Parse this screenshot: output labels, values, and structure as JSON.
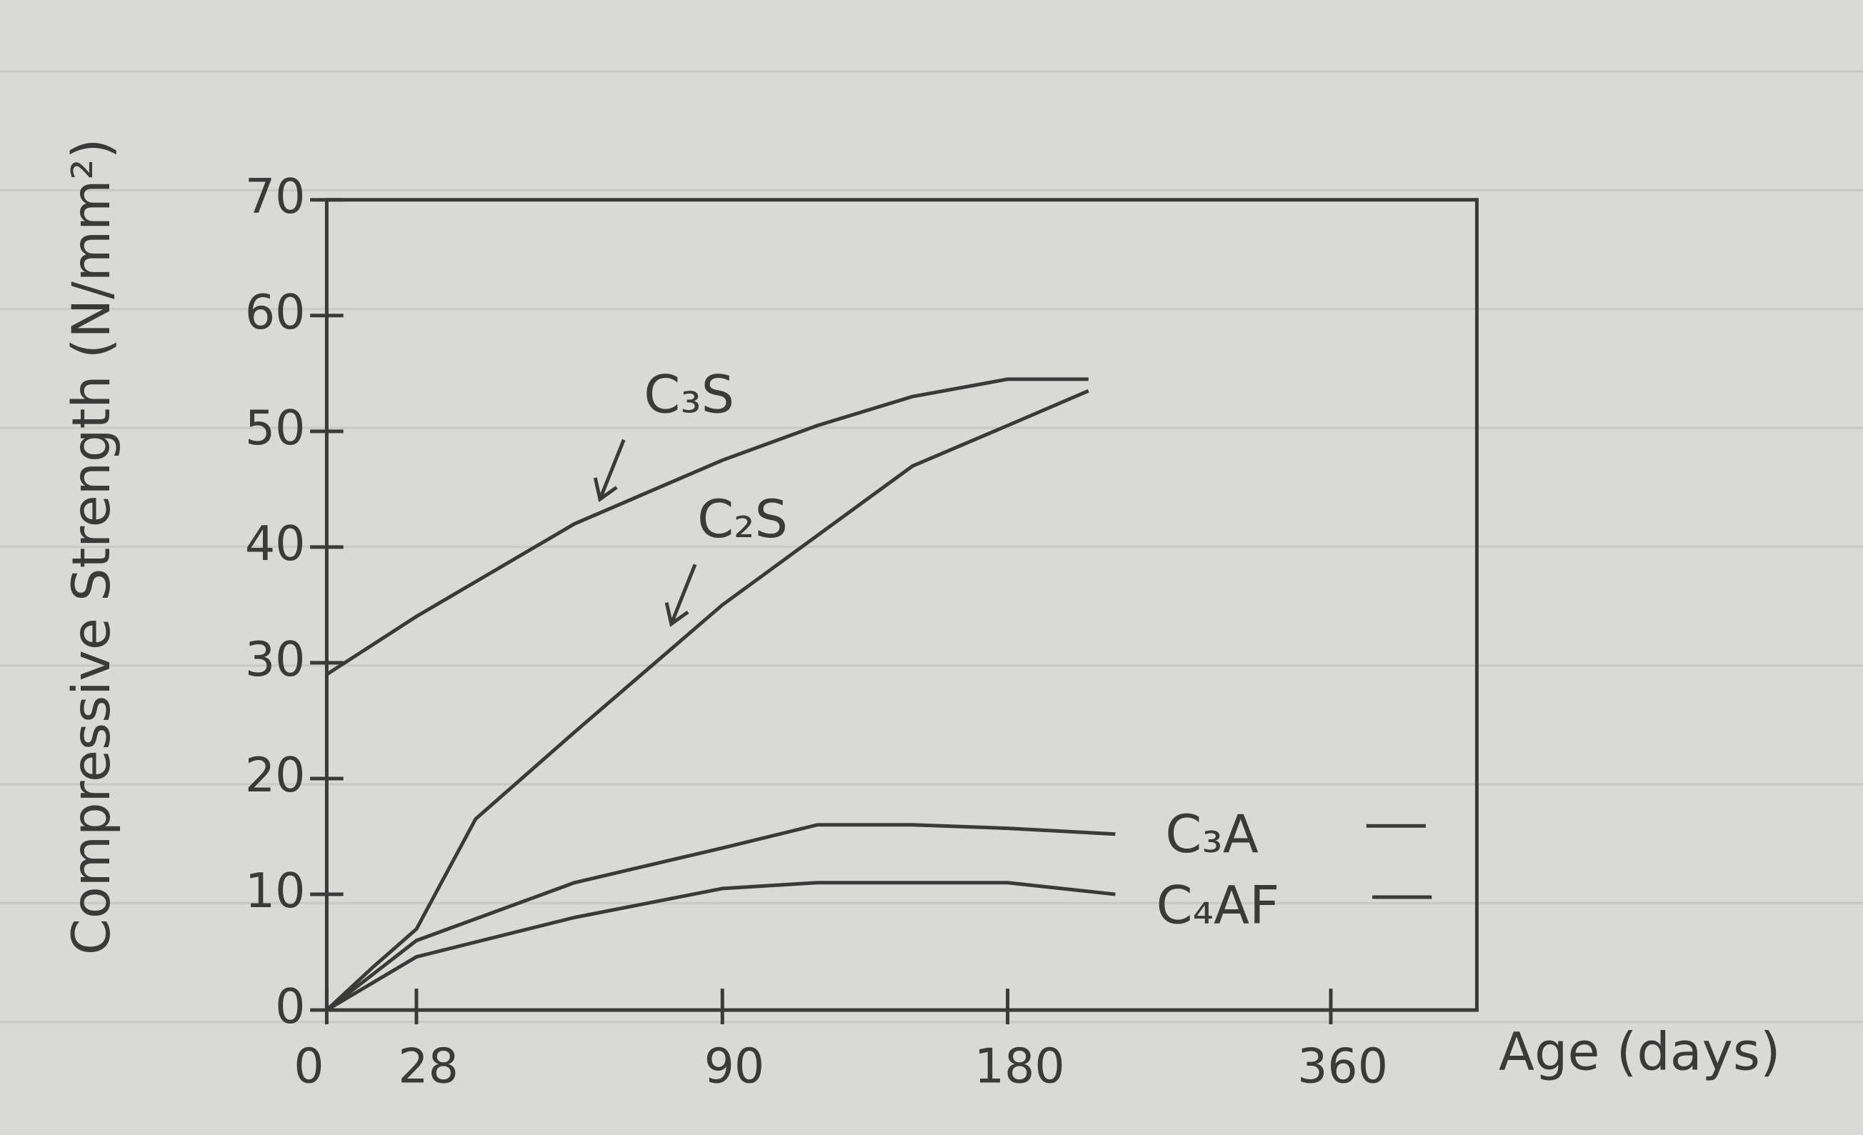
{
  "chart_data": {
    "type": "line",
    "x_label": "Age (days)",
    "y_label": "Compressive Strength (N/mm²)",
    "xlim": [
      0,
      440
    ],
    "xticks": [
      0,
      28,
      90,
      180,
      360
    ],
    "ylim": [
      0,
      70
    ],
    "yticks": [
      0,
      10,
      20,
      30,
      40,
      50,
      60,
      70
    ],
    "series": [
      {
        "name": "C₃S",
        "color": "#3a3a3a",
        "x": [
          0,
          28,
          60,
          90,
          120,
          150,
          180,
          225
        ],
        "values": [
          29,
          34,
          42,
          47.5,
          50.5,
          53,
          54.5,
          54.5
        ]
      },
      {
        "name": "C₂S",
        "color": "#3a3a3a",
        "x": [
          0,
          14,
          28,
          40,
          60,
          90,
          120,
          150,
          180,
          225
        ],
        "values": [
          0,
          3.6,
          7,
          16.5,
          24,
          35,
          41,
          47,
          50.5,
          53.5
        ]
      },
      {
        "name": "C₃A",
        "color": "#3a3a3a",
        "x": [
          0,
          28,
          60,
          90,
          120,
          150,
          180,
          240
        ],
        "values": [
          0,
          6,
          11,
          14,
          16,
          16,
          15.7,
          15.2
        ]
      },
      {
        "name": "C₄AF",
        "color": "#3a3a3a",
        "x": [
          0,
          28,
          60,
          90,
          120,
          150,
          180,
          240
        ],
        "values": [
          0,
          4.6,
          8,
          10.5,
          11,
          11,
          11,
          10
        ]
      }
    ]
  }
}
